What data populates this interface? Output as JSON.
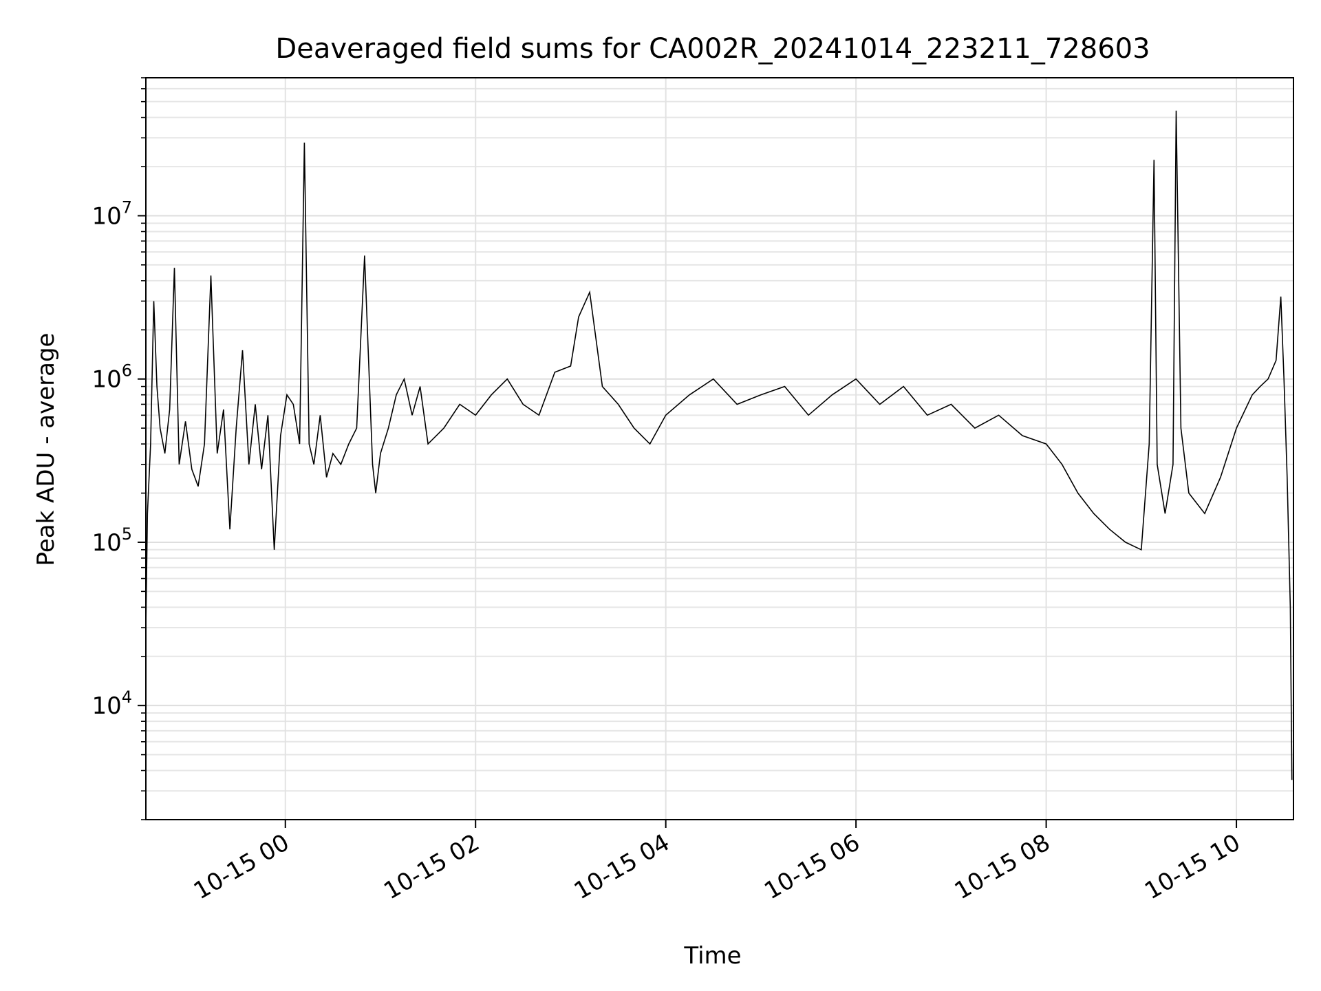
{
  "chart_data": {
    "type": "line",
    "title": "Deaveraged field sums for CA002R_20241014_223211_728603",
    "xlabel": "Time",
    "ylabel": "Peak ADU - average",
    "yscale": "log",
    "grid": true,
    "line_color": "#000000",
    "xlim": [
      "2024-10-14 22:32",
      "2024-10-15 10:36"
    ],
    "ylim": [
      2000,
      70000000
    ],
    "x_ticks": [
      {
        "label": "10-15 00",
        "time": "2024-10-15 00:00"
      },
      {
        "label": "10-15 02",
        "time": "2024-10-15 02:00"
      },
      {
        "label": "10-15 04",
        "time": "2024-10-15 04:00"
      },
      {
        "label": "10-15 06",
        "time": "2024-10-15 06:00"
      },
      {
        "label": "10-15 08",
        "time": "2024-10-15 08:00"
      },
      {
        "label": "10-15 10",
        "time": "2024-10-15 10:00"
      }
    ],
    "y_ticks": [
      {
        "base": "10",
        "exp": "4",
        "value": 10000
      },
      {
        "base": "10",
        "exp": "5",
        "value": 100000
      },
      {
        "base": "10",
        "exp": "6",
        "value": 1000000
      },
      {
        "base": "10",
        "exp": "7",
        "value": 10000000
      }
    ],
    "series": [
      {
        "x": [
          "2024-10-14 22:32",
          "2024-10-14 22:33",
          "2024-10-14 22:35",
          "2024-10-14 22:37",
          "2024-10-14 22:39",
          "2024-10-14 22:41",
          "2024-10-14 22:44",
          "2024-10-14 22:47",
          "2024-10-14 22:50",
          "2024-10-14 22:53",
          "2024-10-14 22:57",
          "2024-10-14 23:01",
          "2024-10-14 23:05",
          "2024-10-14 23:09",
          "2024-10-14 23:13",
          "2024-10-14 23:17",
          "2024-10-14 23:21",
          "2024-10-14 23:25",
          "2024-10-14 23:29",
          "2024-10-14 23:33",
          "2024-10-14 23:37",
          "2024-10-14 23:41",
          "2024-10-14 23:45",
          "2024-10-14 23:49",
          "2024-10-14 23:53",
          "2024-10-14 23:57",
          "2024-10-15 00:01",
          "2024-10-15 00:05",
          "2024-10-15 00:09",
          "2024-10-15 00:12",
          "2024-10-15 00:15",
          "2024-10-15 00:18",
          "2024-10-15 00:22",
          "2024-10-15 00:26",
          "2024-10-15 00:30",
          "2024-10-15 00:35",
          "2024-10-15 00:40",
          "2024-10-15 00:45",
          "2024-10-15 00:50",
          "2024-10-15 00:55",
          "2024-10-15 00:57",
          "2024-10-15 01:00",
          "2024-10-15 01:05",
          "2024-10-15 01:10",
          "2024-10-15 01:15",
          "2024-10-15 01:20",
          "2024-10-15 01:25",
          "2024-10-15 01:30",
          "2024-10-15 01:40",
          "2024-10-15 01:50",
          "2024-10-15 02:00",
          "2024-10-15 02:10",
          "2024-10-15 02:20",
          "2024-10-15 02:30",
          "2024-10-15 02:40",
          "2024-10-15 02:50",
          "2024-10-15 03:00",
          "2024-10-15 03:05",
          "2024-10-15 03:12",
          "2024-10-15 03:20",
          "2024-10-15 03:30",
          "2024-10-15 03:40",
          "2024-10-15 03:50",
          "2024-10-15 04:00",
          "2024-10-15 04:15",
          "2024-10-15 04:30",
          "2024-10-15 04:45",
          "2024-10-15 05:00",
          "2024-10-15 05:15",
          "2024-10-15 05:30",
          "2024-10-15 05:45",
          "2024-10-15 06:00",
          "2024-10-15 06:15",
          "2024-10-15 06:30",
          "2024-10-15 06:45",
          "2024-10-15 07:00",
          "2024-10-15 07:15",
          "2024-10-15 07:30",
          "2024-10-15 07:45",
          "2024-10-15 08:00",
          "2024-10-15 08:10",
          "2024-10-15 08:20",
          "2024-10-15 08:30",
          "2024-10-15 08:40",
          "2024-10-15 08:50",
          "2024-10-15 09:00",
          "2024-10-15 09:05",
          "2024-10-15 09:08",
          "2024-10-15 09:10",
          "2024-10-15 09:15",
          "2024-10-15 09:20",
          "2024-10-15 09:22",
          "2024-10-15 09:25",
          "2024-10-15 09:30",
          "2024-10-15 09:40",
          "2024-10-15 09:50",
          "2024-10-15 10:00",
          "2024-10-15 10:10",
          "2024-10-15 10:15",
          "2024-10-15 10:20",
          "2024-10-15 10:25",
          "2024-10-15 10:28",
          "2024-10-15 10:30",
          "2024-10-15 10:32",
          "2024-10-15 10:34",
          "2024-10-15 10:35"
        ],
        "y": [
          30000,
          150000,
          400000,
          3000000,
          900000,
          500000,
          350000,
          650000,
          4800000,
          300000,
          550000,
          280000,
          220000,
          400000,
          4300000,
          350000,
          650000,
          120000,
          500000,
          1500000,
          300000,
          700000,
          280000,
          600000,
          90000,
          450000,
          800000,
          700000,
          400000,
          28000000,
          400000,
          300000,
          600000,
          250000,
          350000,
          300000,
          400000,
          500000,
          5700000,
          300000,
          200000,
          350000,
          500000,
          800000,
          1000000,
          600000,
          900000,
          400000,
          500000,
          700000,
          600000,
          800000,
          1000000,
          700000,
          600000,
          1100000,
          1200000,
          2400000,
          3400000,
          900000,
          700000,
          500000,
          400000,
          600000,
          800000,
          1000000,
          700000,
          800000,
          900000,
          600000,
          800000,
          1000000,
          700000,
          900000,
          600000,
          700000,
          500000,
          600000,
          450000,
          400000,
          300000,
          200000,
          150000,
          120000,
          100000,
          90000,
          400000,
          22000000,
          300000,
          150000,
          300000,
          44000000,
          500000,
          200000,
          150000,
          250000,
          500000,
          800000,
          900000,
          1000000,
          1300000,
          3200000,
          1000000,
          250000,
          40000,
          3500
        ]
      }
    ]
  }
}
